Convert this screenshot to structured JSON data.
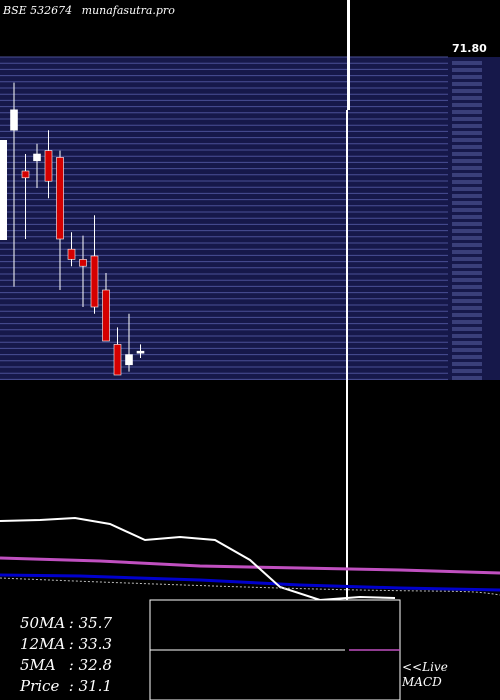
{
  "header": {
    "exchange": "BSE 532674",
    "site": "munafasutra.pro"
  },
  "price_axis_top_label": "71.80",
  "stats": [
    {
      "label": "50MA",
      "value": "35.7"
    },
    {
      "label": "12MA",
      "value": "33.3"
    },
    {
      "label": "5MA",
      "value": "32.8"
    },
    {
      "label": "Price",
      "value": "31.1"
    }
  ],
  "live_link": {
    "line1": "<<Live",
    "line2": "MACD"
  },
  "colors": {
    "grid_band": "#16184a",
    "grid_line": "#4a4f96",
    "bull": "#ffffff",
    "bear": "#d40000",
    "ma_short": "#ffffff",
    "ma_mid": "#c050c0",
    "ma_long": "#0000cc"
  },
  "chart_data": {
    "type": "candlestick",
    "candles": [
      {
        "o": 72.0,
        "h": 86.0,
        "l": 26.0,
        "c": 78.0
      },
      {
        "o": 60.0,
        "h": 65.0,
        "l": 40.0,
        "c": 58.0
      },
      {
        "o": 63.0,
        "h": 68.0,
        "l": 55.0,
        "c": 65.0
      },
      {
        "o": 66.0,
        "h": 72.0,
        "l": 52.0,
        "c": 57.0
      },
      {
        "o": 64.0,
        "h": 66.0,
        "l": 25.0,
        "c": 40.0
      },
      {
        "o": 37.0,
        "h": 42.0,
        "l": 32.0,
        "c": 34.0
      },
      {
        "o": 34.0,
        "h": 41.0,
        "l": 20.0,
        "c": 32.0
      },
      {
        "o": 35.0,
        "h": 47.0,
        "l": 18.0,
        "c": 20.0
      },
      {
        "o": 25.0,
        "h": 30.0,
        "l": 10.0,
        "c": 10.0
      },
      {
        "o": 9.0,
        "h": 14.0,
        "l": 0.0,
        "c": 0.0
      },
      {
        "o": 3.0,
        "h": 18.0,
        "l": 1.0,
        "c": 6.0
      },
      {
        "o": 6.5,
        "h": 9.0,
        "l": 5.0,
        "c": 7.0
      }
    ]
  }
}
